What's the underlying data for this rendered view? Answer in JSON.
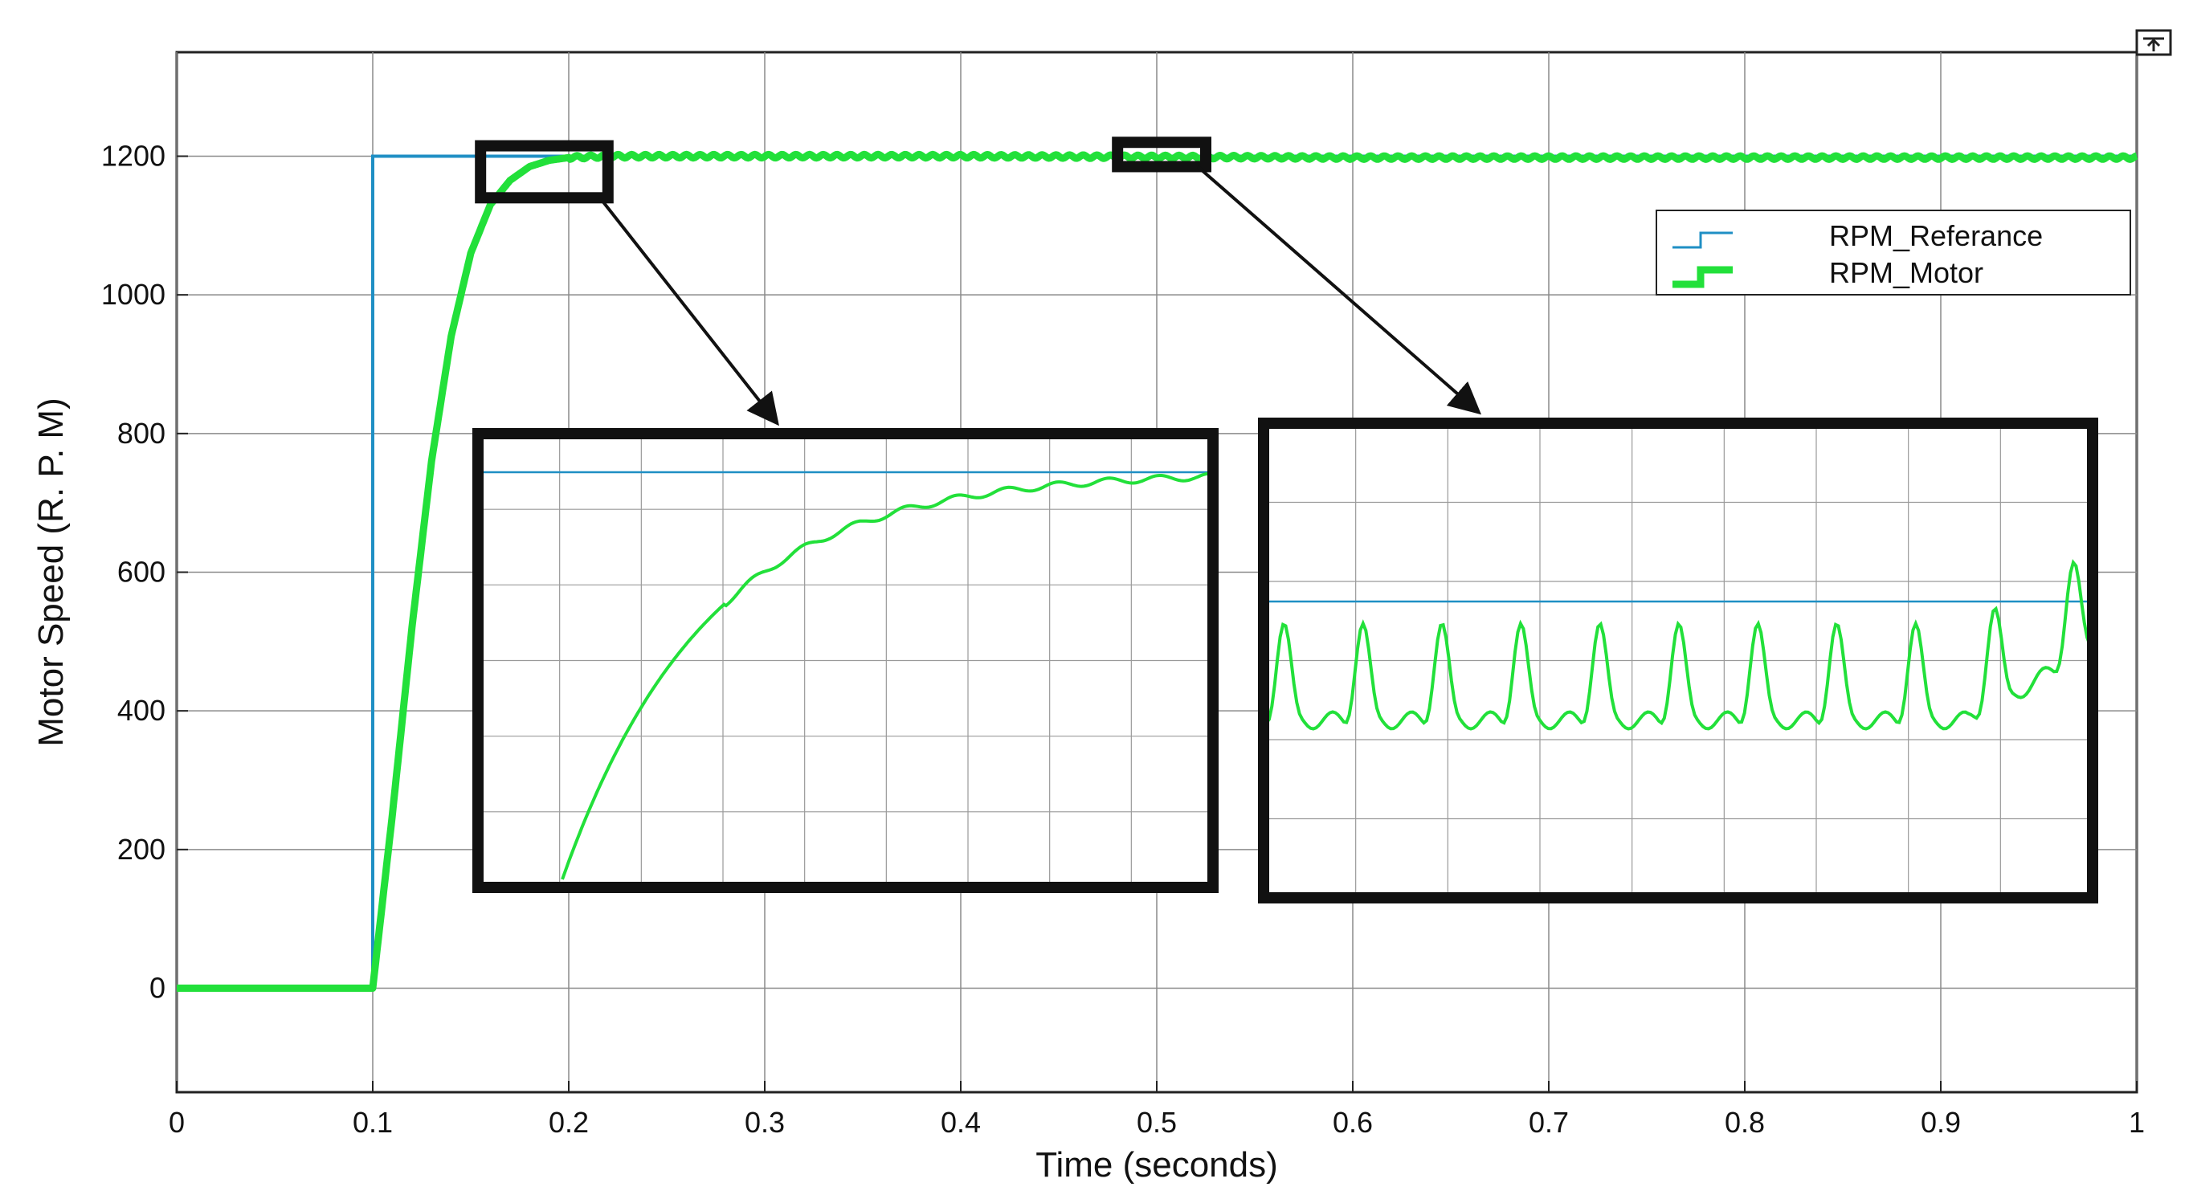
{
  "chart_data": {
    "type": "line",
    "title": "",
    "xlabel": "Time (seconds)",
    "ylabel": "Motor Speed (R. P. M)",
    "xlim": [
      0,
      1
    ],
    "ylim": [
      -150,
      1350
    ],
    "xticks": [
      0,
      0.1,
      0.2,
      0.3,
      0.4,
      0.5,
      0.6,
      0.7,
      0.8,
      0.9,
      1
    ],
    "xtick_labels": [
      "0",
      "0.1",
      "0.2",
      "0.3",
      "0.4",
      "0.5",
      "0.6",
      "0.7",
      "0.8",
      "0.9",
      "1"
    ],
    "yticks": [
      0,
      200,
      400,
      600,
      800,
      1000,
      1200
    ],
    "ytick_labels": [
      "0",
      "200",
      "400",
      "600",
      "800",
      "1000",
      "1200"
    ],
    "grid": true,
    "legend_position": "top-right",
    "series": [
      {
        "name": "RPM_Referance",
        "color": "#1f8fc4",
        "x": [
          0,
          0.1,
          0.1,
          1
        ],
        "y": [
          0,
          0,
          1200,
          1200
        ]
      },
      {
        "name": "RPM_Motor",
        "color": "#22e03a",
        "x": [
          0,
          0.1,
          0.11,
          0.12,
          0.13,
          0.14,
          0.15,
          0.16,
          0.17,
          0.18,
          0.19,
          0.2,
          0.22,
          0.25,
          0.3,
          0.4,
          0.5,
          0.6,
          0.7,
          0.8,
          0.9,
          1
        ],
        "y": [
          0,
          0,
          250,
          520,
          760,
          940,
          1060,
          1130,
          1165,
          1185,
          1194,
          1198,
          1200,
          1200,
          1200,
          1200,
          1199,
          1198,
          1198,
          1198,
          1198,
          1198
        ]
      }
    ],
    "zoom_callouts": [
      {
        "source_x": [
          0.155,
          0.22
        ],
        "source_y": [
          1140,
          1215
        ]
      },
      {
        "source_x": [
          0.48,
          0.525
        ],
        "source_y": [
          1185,
          1220
        ]
      }
    ]
  }
}
